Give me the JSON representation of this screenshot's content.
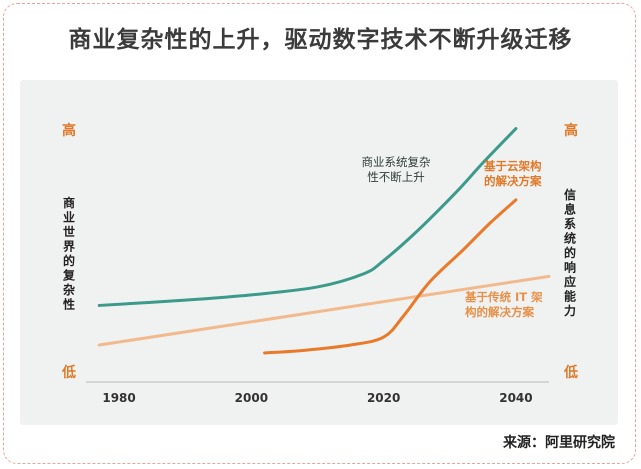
{
  "title": "商业复杂性的上升，驱动数字技术不断升级迁移",
  "source": "来源：阿里研究院",
  "chart_data": {
    "type": "line",
    "x_ticks": [
      1980,
      2000,
      2020,
      2040
    ],
    "xlim": [
      1975,
      2045
    ],
    "ylim": [
      0,
      100
    ],
    "y_left": {
      "label": "商业世界的复杂性",
      "high": "高",
      "low": "低"
    },
    "y_right": {
      "label": "信息系统的响应能力",
      "high": "高",
      "low": "低"
    },
    "series": [
      {
        "name": "商业系统复杂性不断上升",
        "label_lines": [
          "商业系统复杂",
          "性不断上升"
        ],
        "color": "#3c9a8a",
        "points": [
          [
            1977,
            29
          ],
          [
            1990,
            31
          ],
          [
            2000,
            33
          ],
          [
            2010,
            36
          ],
          [
            2017,
            41
          ],
          [
            2020,
            46
          ],
          [
            2025,
            57
          ],
          [
            2031,
            72
          ],
          [
            2035,
            83
          ],
          [
            2040,
            96
          ]
        ]
      },
      {
        "name": "基于云架构的解决方案",
        "label_lines": [
          "基于云架构",
          "的解决方案"
        ],
        "color": "#e87a2a",
        "points": [
          [
            2002,
            11
          ],
          [
            2008,
            12
          ],
          [
            2015,
            14
          ],
          [
            2020,
            17
          ],
          [
            2023,
            25
          ],
          [
            2027,
            38
          ],
          [
            2032,
            50
          ],
          [
            2036,
            60
          ],
          [
            2040,
            69
          ]
        ]
      },
      {
        "name": "基于传统 IT 架构的解决方案",
        "label_lines": [
          "基于传统 IT 架",
          "构的解决方案"
        ],
        "color": "#f2b98d",
        "points": [
          [
            1977,
            14
          ],
          [
            2045,
            40
          ]
        ]
      }
    ]
  }
}
